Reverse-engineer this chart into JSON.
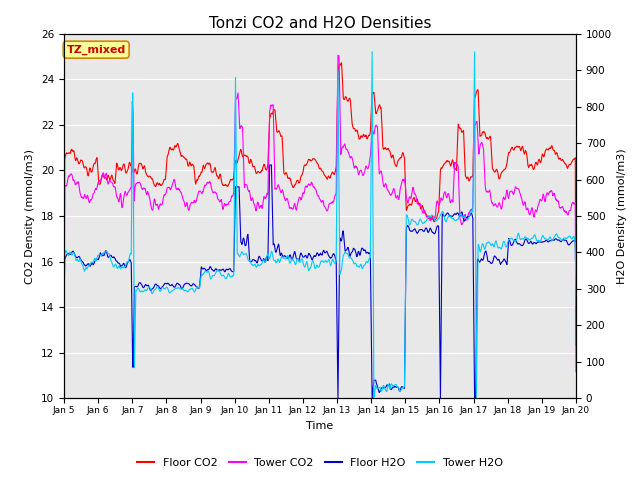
{
  "title": "Tonzi CO2 and H2O Densities",
  "xlabel": "Time",
  "ylabel_left": "CO2 Density (mmol/m3)",
  "ylabel_right": "H2O Density (mmol/m3)",
  "ylim_left": [
    10,
    26
  ],
  "ylim_right": [
    0,
    1000
  ],
  "yticks_left": [
    10,
    12,
    14,
    16,
    18,
    20,
    22,
    24,
    26
  ],
  "yticks_right": [
    0,
    100,
    200,
    300,
    400,
    500,
    600,
    700,
    800,
    900,
    1000
  ],
  "xtick_labels": [
    "Jan 5",
    "Jan 6",
    "Jan 7",
    "Jan 8",
    "Jan 9",
    "Jan 10",
    "Jan 11",
    "Jan 12",
    "Jan 13",
    "Jan 14",
    "Jan 15",
    "Jan 16",
    "Jan 17",
    "Jan 18",
    "Jan 19",
    "Jan 20"
  ],
  "annotation_text": "TZ_mixed",
  "annotation_color": "#cc0000",
  "annotation_bg": "#ffff99",
  "annotation_border": "#cc8800",
  "colors": {
    "floor_co2": "#ff0000",
    "tower_co2": "#ff00ff",
    "floor_h2o": "#0000cc",
    "tower_h2o": "#00ccff"
  },
  "legend_labels": [
    "Floor CO2",
    "Tower CO2",
    "Floor H2O",
    "Tower H2O"
  ],
  "bg_color": "#e8e8e8",
  "linewidth": 0.8,
  "title_fontsize": 11
}
